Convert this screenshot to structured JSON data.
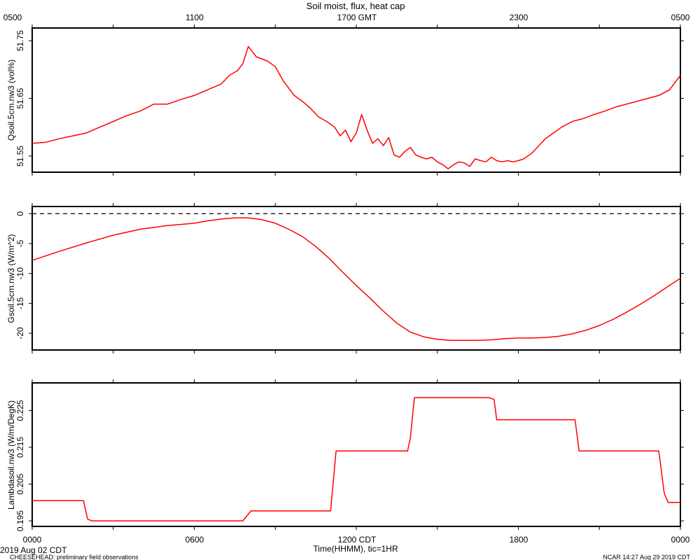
{
  "header": {
    "title": "Soil moist, flux, heat cap",
    "gmt_ticks": [
      "0500",
      "1100",
      "1700 GMT",
      "2300",
      "0500"
    ]
  },
  "footer": {
    "date": "2019 Aug 02 CDT",
    "project": "CHEESEHEAD: preliminary field observations",
    "credit": "NCAR 14:27 Aug 29 2019 CDT",
    "xlabel": "Time(HHMM), tic=1HR",
    "cdt_ticks": [
      "0000",
      "0600",
      "1200 CDT",
      "1800",
      "0000"
    ]
  },
  "colors": {
    "trace": "#ff0000",
    "axes": "#000000",
    "background": "#ffffff"
  },
  "chart_data": [
    {
      "type": "line",
      "ylabel": "Qsoil.5cm.nw3 (vol%)",
      "yticks": [
        "51.55",
        "51.65",
        "51.75"
      ],
      "ylim": [
        51.522,
        51.772
      ],
      "xlim": [
        0,
        24
      ],
      "x_unit": "hours CDT",
      "series": [
        {
          "x": [
            0,
            0.5,
            1,
            1.5,
            2,
            2.5,
            3,
            3.5,
            4,
            4.5,
            5,
            5.5,
            6,
            6.5,
            7,
            7.3,
            7.6,
            7.8,
            8,
            8.3,
            8.7,
            9,
            9.3,
            9.7,
            10,
            10.3,
            10.6,
            10.9,
            11.2,
            11.4,
            11.6,
            11.8,
            12,
            12.2,
            12.4,
            12.6,
            12.8,
            13,
            13.2,
            13.4,
            13.6,
            13.8,
            14,
            14.2,
            14.4,
            14.6,
            14.8,
            15,
            15.2,
            15.4,
            15.6,
            15.8,
            16,
            16.2,
            16.4,
            16.6,
            16.8,
            17,
            17.2,
            17.4,
            17.6,
            17.8,
            18,
            18.2,
            18.5,
            18.8,
            19,
            19.3,
            19.6,
            20,
            20.4,
            20.8,
            21.2,
            21.6,
            22,
            22.4,
            22.8,
            23.2,
            23.6,
            24
          ],
          "values": [
            51.572,
            51.574,
            51.58,
            51.585,
            51.59,
            51.6,
            51.61,
            51.62,
            51.628,
            51.64,
            51.64,
            51.648,
            51.655,
            51.665,
            51.675,
            51.69,
            51.698,
            51.71,
            51.74,
            51.722,
            51.715,
            51.705,
            51.68,
            51.655,
            51.645,
            51.633,
            51.618,
            51.61,
            51.6,
            51.585,
            51.595,
            51.575,
            51.59,
            51.622,
            51.595,
            51.572,
            51.58,
            51.568,
            51.582,
            51.552,
            51.548,
            51.558,
            51.565,
            51.552,
            51.548,
            51.545,
            51.548,
            51.54,
            51.535,
            51.528,
            51.535,
            51.54,
            51.538,
            51.532,
            51.545,
            51.542,
            51.54,
            51.548,
            51.542,
            51.54,
            51.542,
            51.54,
            51.542,
            51.545,
            51.555,
            51.57,
            51.58,
            51.59,
            51.6,
            51.61,
            51.615,
            51.622,
            51.628,
            51.635,
            51.64,
            51.645,
            51.65,
            51.655,
            51.665,
            51.69
          ]
        }
      ]
    },
    {
      "type": "line",
      "ylabel": "Gsoil.5cm.nw3 (W/m^2)",
      "yticks": [
        "0",
        "-5",
        "-10",
        "-15",
        "-20"
      ],
      "ylim": [
        -22.8,
        1.2
      ],
      "xlim": [
        0,
        24
      ],
      "x_unit": "hours CDT",
      "zero_line": true,
      "series": [
        {
          "x": [
            0,
            1,
            2,
            3,
            4,
            5,
            6,
            6.5,
            7,
            7.5,
            8,
            8.5,
            9,
            9.5,
            10,
            10.5,
            11,
            11.5,
            12,
            12.5,
            13,
            13.5,
            14,
            14.5,
            15,
            15.5,
            16,
            16.5,
            17,
            17.5,
            18,
            18.5,
            19,
            19.5,
            20,
            20.5,
            21,
            21.5,
            22,
            22.5,
            23,
            23.5,
            24
          ],
          "values": [
            -7.8,
            -6.3,
            -4.9,
            -3.6,
            -2.6,
            -2.0,
            -1.6,
            -1.2,
            -0.9,
            -0.7,
            -0.7,
            -1.0,
            -1.6,
            -2.6,
            -3.8,
            -5.5,
            -7.5,
            -9.8,
            -12.0,
            -14.1,
            -16.3,
            -18.3,
            -19.8,
            -20.6,
            -21.0,
            -21.2,
            -21.2,
            -21.2,
            -21.1,
            -20.9,
            -20.8,
            -20.8,
            -20.7,
            -20.5,
            -20.1,
            -19.5,
            -18.7,
            -17.7,
            -16.5,
            -15.2,
            -13.8,
            -12.3,
            -10.8
          ]
        }
      ]
    },
    {
      "type": "line",
      "ylabel": "Lambdasoil.nw3 (W/m/DegK)",
      "yticks": [
        "0.195",
        "0.205",
        "0.215",
        "0.225"
      ],
      "ylim": [
        0.1935,
        0.2325
      ],
      "xlim": [
        0,
        24
      ],
      "x_unit": "hours CDT",
      "series": [
        {
          "x": [
            0,
            1.9,
            2.05,
            2.2,
            7.8,
            8.1,
            11.05,
            11.25,
            13.9,
            14.0,
            14.15,
            16.9,
            17.1,
            17.2,
            20.1,
            20.25,
            23.2,
            23.4,
            23.55,
            24
          ],
          "values": [
            0.2005,
            0.2005,
            0.1955,
            0.195,
            0.195,
            0.1977,
            0.1977,
            0.214,
            0.214,
            0.2175,
            0.2285,
            0.2285,
            0.228,
            0.2225,
            0.2225,
            0.214,
            0.214,
            0.2025,
            0.2,
            0.2
          ]
        }
      ]
    }
  ]
}
